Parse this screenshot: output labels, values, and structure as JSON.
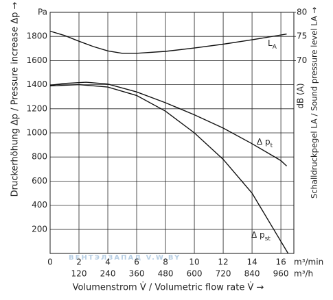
{
  "chart_data": {
    "type": "line",
    "y_title": "Druckerhöhung Δp / Pressure increase Δp  →",
    "y2_title": "Schalldruckpegel LA / Sound pressure level LA →",
    "y2_unit": "dB (A)",
    "x_title": "Volumenstrom V̇ / Volumetric flow rate V̇ →",
    "x_unit": "m³/min",
    "x2_unit": "m³/h",
    "watermark": "ВЕНТЭЛЗАПАД   V.W.BY",
    "xlim": [
      0,
      16.9
    ],
    "xticks": [
      0,
      2,
      4,
      6,
      8,
      10,
      12,
      14,
      16
    ],
    "x2lim": [
      0,
      1014
    ],
    "x2ticks": [
      120,
      240,
      360,
      480,
      600,
      720,
      840,
      960
    ],
    "ylim": [
      0,
      2000
    ],
    "yticks": [
      200,
      400,
      600,
      800,
      1000,
      1200,
      1400,
      1600,
      1800,
      {
        "value": 2000,
        "label": "Pa"
      }
    ],
    "y2lim": [
      30,
      80
    ],
    "y2ticks": [
      70,
      75,
      80
    ],
    "grid": true,
    "series": [
      {
        "name": "L",
        "sub": "A",
        "color": "#111",
        "axis": "y2",
        "x": [
          0,
          1,
          2,
          3,
          4,
          5,
          6,
          8,
          10,
          12,
          14,
          16.4
        ],
        "values": [
          76.1,
          75.2,
          74.0,
          72.9,
          72.0,
          71.5,
          71.5,
          71.9,
          72.6,
          73.4,
          74.3,
          75.5
        ]
      },
      {
        "name": "Δ p",
        "sub": "t",
        "color": "#111",
        "x": [
          0,
          1,
          2.5,
          4,
          6,
          8,
          10,
          12,
          14,
          16,
          16.4
        ],
        "values": [
          1395,
          1410,
          1420,
          1405,
          1340,
          1250,
          1150,
          1040,
          910,
          770,
          725
        ]
      },
      {
        "name": "Δ p",
        "sub": "st",
        "color": "#111",
        "x": [
          0,
          2,
          4,
          6,
          8,
          10,
          12,
          14,
          15.5,
          16.5
        ],
        "values": [
          1390,
          1400,
          1380,
          1310,
          1180,
          1000,
          780,
          500,
          200,
          0
        ]
      }
    ]
  }
}
